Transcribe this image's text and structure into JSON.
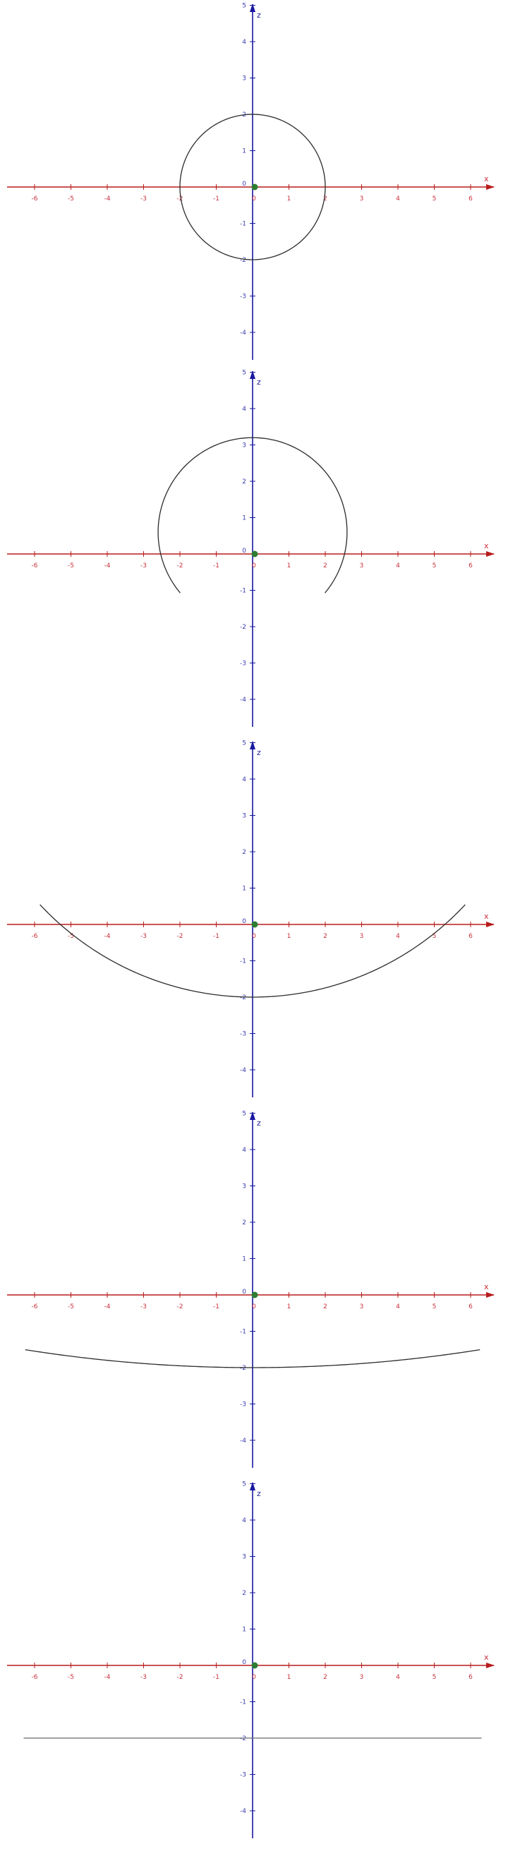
{
  "colors": {
    "x_axis": "#b81c1c",
    "z_axis": "#1818a0",
    "x_tick_text": "#c8323c",
    "z_tick_text": "#3a3ab0",
    "curve": "#2b2b2b",
    "origin_marker": "#2e7d32"
  },
  "chart_data": [
    {
      "type": "line",
      "xlabel": "x",
      "ylabel": "z",
      "xlim": [
        -6,
        6
      ],
      "ylim": [
        -4,
        5
      ],
      "x_ticks": [
        "-6",
        "-5",
        "-4",
        "-3",
        "-2",
        "-1",
        "0",
        "1",
        "2",
        "3",
        "4",
        "5",
        "6"
      ],
      "z_ticks": [
        "5",
        "4",
        "3",
        "2",
        "1",
        "0",
        "-1",
        "-2",
        "-3",
        "-4"
      ],
      "series": [
        {
          "shape": "circle",
          "center": [
            0,
            0
          ],
          "radius": 2,
          "angle_range_deg": [
            0,
            360
          ]
        }
      ]
    },
    {
      "type": "line",
      "xlabel": "x",
      "ylabel": "z",
      "xlim": [
        -6,
        6
      ],
      "ylim": [
        -4,
        5
      ],
      "x_ticks": [
        "-6",
        "-5",
        "-4",
        "-3",
        "-2",
        "-1",
        "0",
        "1",
        "2",
        "3",
        "4",
        "5",
        "6"
      ],
      "z_ticks": [
        "5",
        "4",
        "3",
        "2",
        "1",
        "0",
        "-1",
        "-2",
        "-3",
        "-4"
      ],
      "series": [
        {
          "shape": "circle",
          "center": [
            0,
            0.6
          ],
          "radius": 2.6,
          "angle_range_deg": [
            -40,
            220
          ]
        }
      ]
    },
    {
      "type": "line",
      "xlabel": "x",
      "ylabel": "z",
      "xlim": [
        -6,
        6
      ],
      "ylim": [
        -4,
        5
      ],
      "x_ticks": [
        "-6",
        "-5",
        "-4",
        "-3",
        "-2",
        "-1",
        "0",
        "1",
        "2",
        "3",
        "4",
        "5",
        "6"
      ],
      "z_ticks": [
        "5",
        "4",
        "3",
        "2",
        "1",
        "0",
        "-1",
        "-2",
        "-3",
        "-4"
      ],
      "series": [
        {
          "shape": "circle",
          "center": [
            0,
            6
          ],
          "radius": 8,
          "angle_range_deg": [
            223,
            317
          ]
        }
      ]
    },
    {
      "type": "line",
      "xlabel": "x",
      "ylabel": "z",
      "xlim": [
        -6,
        6
      ],
      "ylim": [
        -4,
        5
      ],
      "x_ticks": [
        "-6",
        "-5",
        "-4",
        "-3",
        "-2",
        "-1",
        "0",
        "1",
        "2",
        "3",
        "4",
        "5",
        "6"
      ],
      "z_ticks": [
        "5",
        "4",
        "3",
        "2",
        "1",
        "0",
        "-1",
        "-2",
        "-3",
        "-4"
      ],
      "series": [
        {
          "shape": "circle",
          "center": [
            0,
            38
          ],
          "radius": 40,
          "angle_range_deg": [
            261,
            279
          ]
        }
      ]
    },
    {
      "type": "line",
      "xlabel": "x",
      "ylabel": "z",
      "xlim": [
        -6,
        6
      ],
      "ylim": [
        -4,
        5
      ],
      "x_ticks": [
        "-6",
        "-5",
        "-4",
        "-3",
        "-2",
        "-1",
        "0",
        "1",
        "2",
        "3",
        "4",
        "5",
        "6"
      ],
      "z_ticks": [
        "5",
        "4",
        "3",
        "2",
        "1",
        "0",
        "-1",
        "-2",
        "-3",
        "-4"
      ],
      "series": [
        {
          "shape": "line",
          "z": -2,
          "x_range": [
            -6.3,
            6.3
          ]
        }
      ]
    }
  ]
}
